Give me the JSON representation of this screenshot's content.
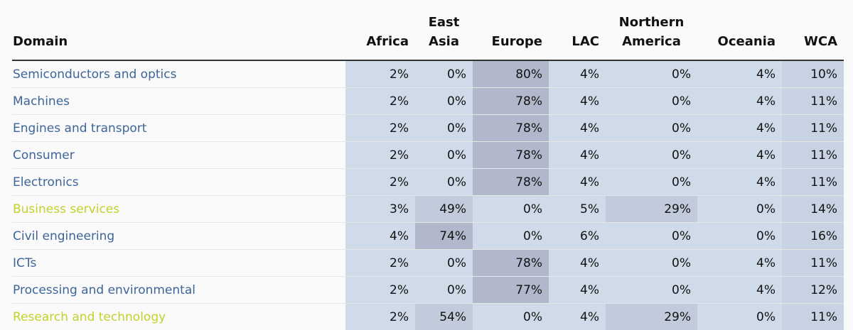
{
  "table": {
    "headers": [
      {
        "lines": [
          "Domain"
        ]
      },
      {
        "lines": [
          "Africa"
        ]
      },
      {
        "lines": [
          "East",
          "Asia"
        ]
      },
      {
        "lines": [
          "Europe"
        ]
      },
      {
        "lines": [
          "LAC"
        ]
      },
      {
        "lines": [
          "Northern",
          "America"
        ]
      },
      {
        "lines": [
          "Oceania"
        ]
      },
      {
        "lines": [
          "WCA"
        ]
      }
    ],
    "rows": [
      {
        "domain": "Semiconductors and optics",
        "highlight": false,
        "values": [
          "2%",
          "0%",
          "80%",
          "4%",
          "0%",
          "4%",
          "10%"
        ]
      },
      {
        "domain": "Machines",
        "highlight": false,
        "values": [
          "2%",
          "0%",
          "78%",
          "4%",
          "0%",
          "4%",
          "11%"
        ]
      },
      {
        "domain": "Engines and transport",
        "highlight": false,
        "values": [
          "2%",
          "0%",
          "78%",
          "4%",
          "0%",
          "4%",
          "11%"
        ]
      },
      {
        "domain": "Consumer",
        "highlight": false,
        "values": [
          "2%",
          "0%",
          "78%",
          "4%",
          "0%",
          "4%",
          "11%"
        ]
      },
      {
        "domain": "Electronics",
        "highlight": false,
        "values": [
          "2%",
          "0%",
          "78%",
          "4%",
          "0%",
          "4%",
          "11%"
        ]
      },
      {
        "domain": "Business services",
        "highlight": true,
        "values": [
          "3%",
          "49%",
          "0%",
          "5%",
          "29%",
          "0%",
          "14%"
        ]
      },
      {
        "domain": "Civil engineering",
        "highlight": false,
        "values": [
          "4%",
          "74%",
          "0%",
          "6%",
          "0%",
          "0%",
          "16%"
        ]
      },
      {
        "domain": "ICTs",
        "highlight": false,
        "values": [
          "2%",
          "0%",
          "78%",
          "4%",
          "0%",
          "4%",
          "11%"
        ]
      },
      {
        "domain": "Processing and environmental",
        "highlight": false,
        "values": [
          "2%",
          "0%",
          "77%",
          "4%",
          "0%",
          "4%",
          "12%"
        ]
      },
      {
        "domain": "Research and technology",
        "highlight": true,
        "values": [
          "2%",
          "54%",
          "0%",
          "4%",
          "29%",
          "0%",
          "11%"
        ]
      }
    ],
    "colors": {
      "link": "#3d6599",
      "highlight_link": "#c3d12a",
      "cell_base": "#cfdbe9",
      "cell_mid": "#c2cbdc",
      "cell_high": "#b2b8cb"
    }
  }
}
